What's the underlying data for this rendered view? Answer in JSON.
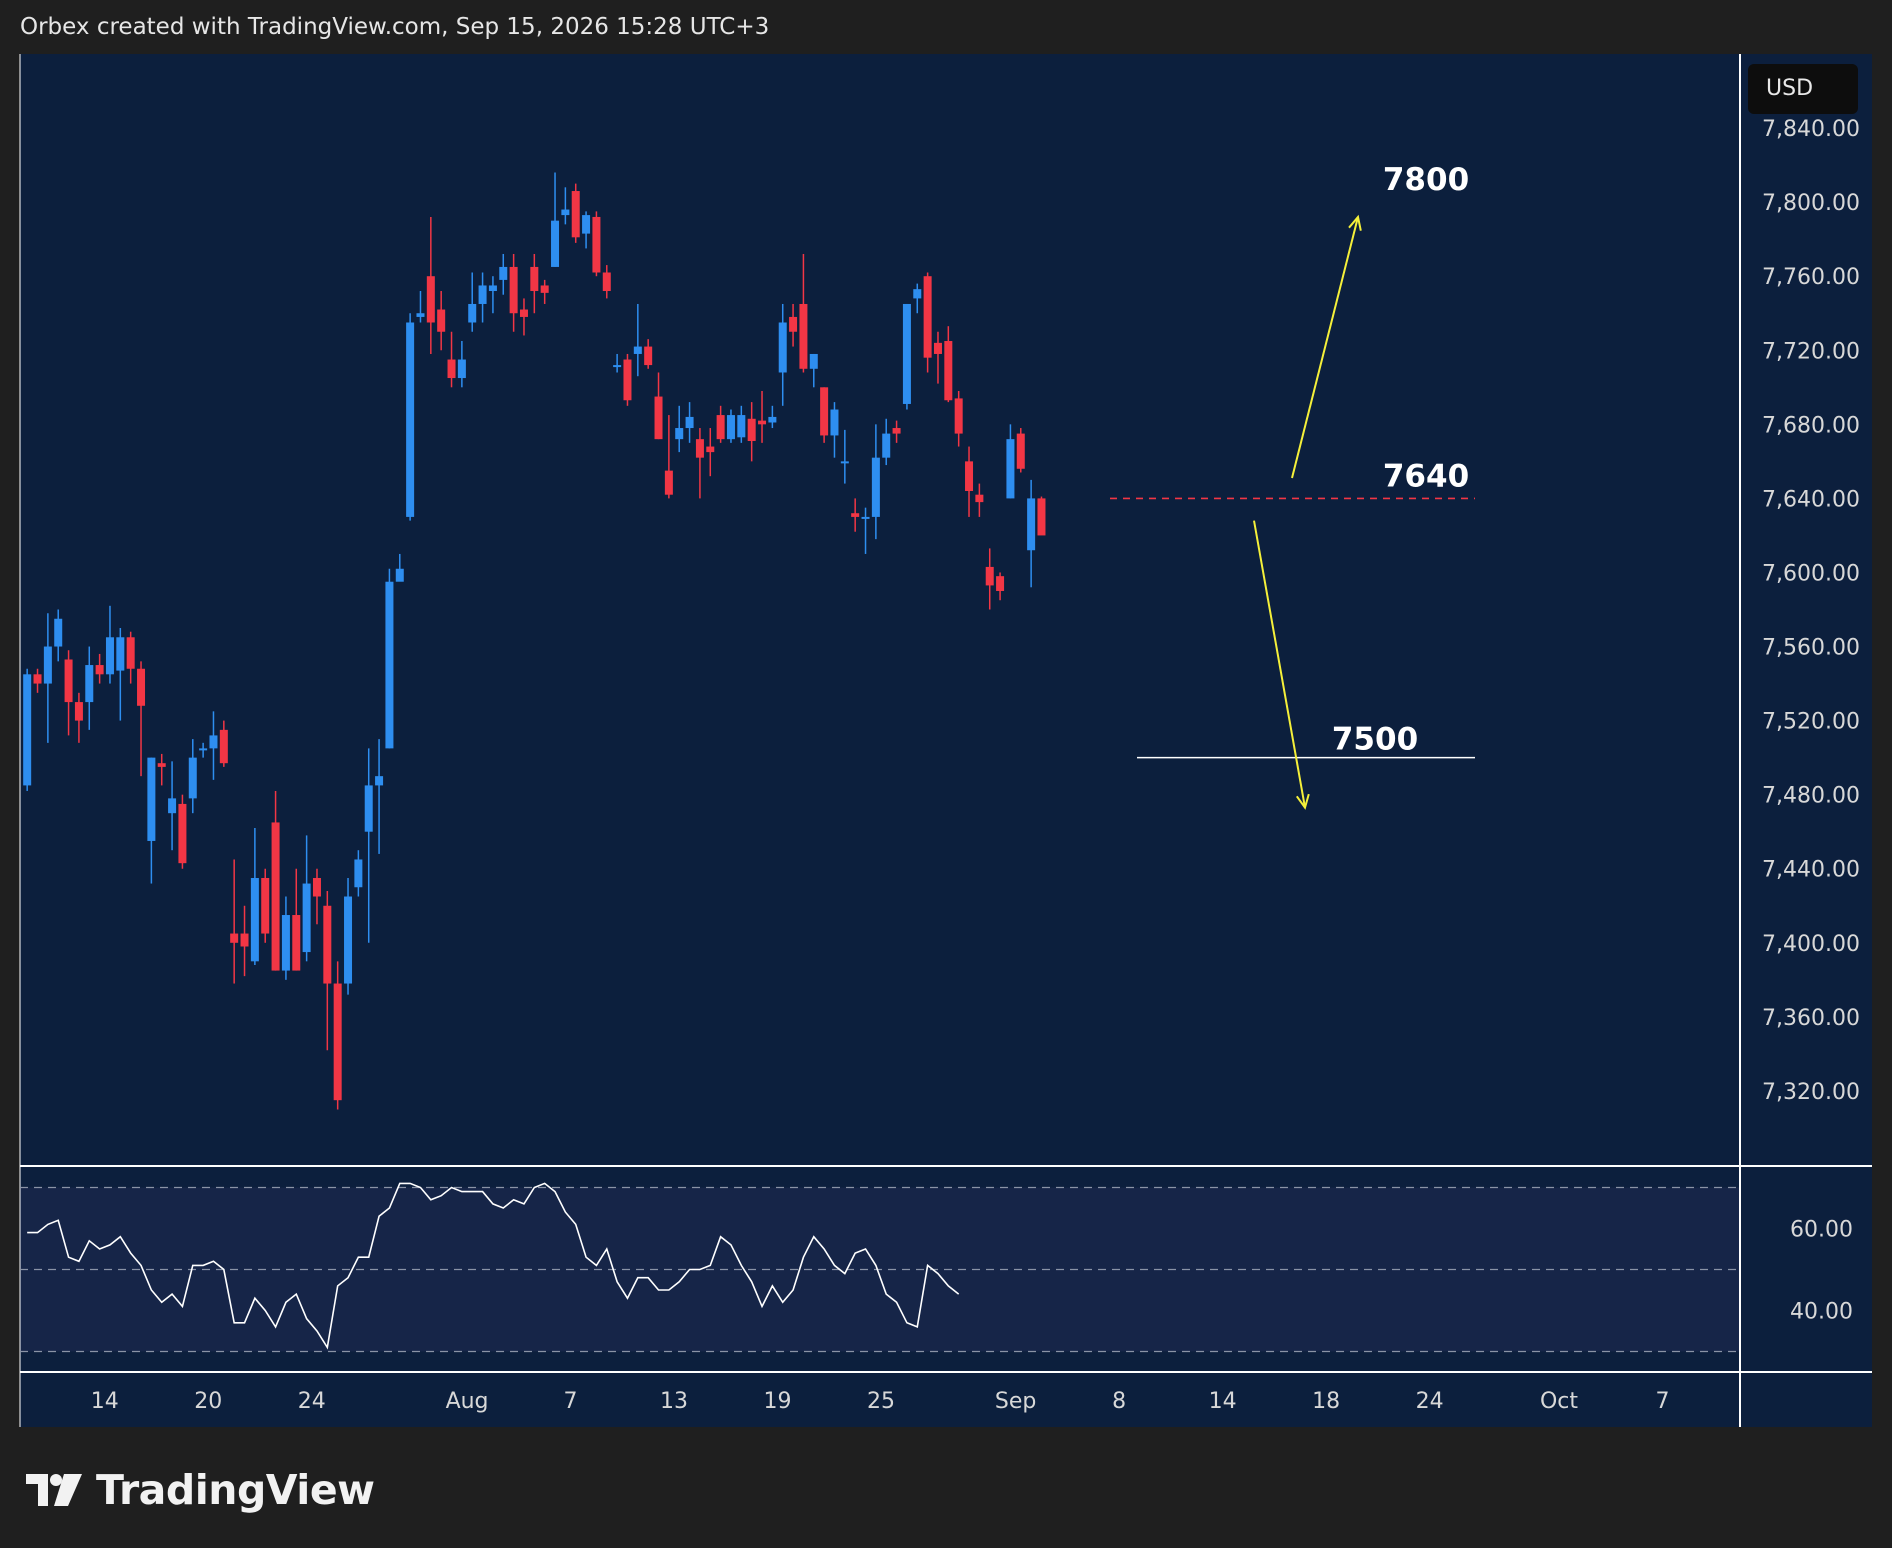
{
  "header": {
    "text": "Orbex created with TradingView.com, Sep 15, 2026 15:28 UTC+3"
  },
  "currency": "USD",
  "brand": {
    "name": "TradingView"
  },
  "colors": {
    "up": "#2e8ef0",
    "down": "#f23645",
    "background": "#0c1f3d",
    "rsi_band": "#162548",
    "arrow": "#f5f03a",
    "level_dashed": "#f23645",
    "level_solid": "#ffffff"
  },
  "chart_data": [
    {
      "type": "candlestick",
      "title": "",
      "ylim": [
        7280,
        7880
      ],
      "y_ticks": [
        "7,840.00",
        "7,800.00",
        "7,760.00",
        "7,720.00",
        "7,680.00",
        "7,640.00",
        "7,600.00",
        "7,560.00",
        "7,520.00",
        "7,480.00",
        "7,440.00",
        "7,400.00",
        "7,360.00",
        "7,320.00"
      ],
      "x_ticks": [
        {
          "label": "14",
          "bar": 7.5
        },
        {
          "label": "20",
          "bar": 17.5
        },
        {
          "label": "24",
          "bar": 27.5
        },
        {
          "label": "Aug",
          "bar": 42.5
        },
        {
          "label": "7",
          "bar": 52.5
        },
        {
          "label": "13",
          "bar": 62.5
        },
        {
          "label": "19",
          "bar": 72.5
        },
        {
          "label": "25",
          "bar": 82.5
        },
        {
          "label": "Sep",
          "bar": 95.5
        },
        {
          "label": "8",
          "bar": 105.5
        },
        {
          "label": "14",
          "bar": 115.5
        },
        {
          "label": "18",
          "bar": 125.5
        },
        {
          "label": "24",
          "bar": 135.5
        },
        {
          "label": "Oct",
          "bar": 148
        },
        {
          "label": "7",
          "bar": 158
        }
      ],
      "ohlc": [
        [
          7485,
          7548,
          7482,
          7545
        ],
        [
          7545,
          7548,
          7535,
          7540
        ],
        [
          7540,
          7578,
          7508,
          7560
        ],
        [
          7560,
          7580,
          7552,
          7575
        ],
        [
          7553,
          7558,
          7512,
          7530
        ],
        [
          7530,
          7535,
          7508,
          7520
        ],
        [
          7530,
          7560,
          7515,
          7550
        ],
        [
          7550,
          7556,
          7540,
          7545
        ],
        [
          7545,
          7582,
          7540,
          7565
        ],
        [
          7547,
          7570,
          7520,
          7565
        ],
        [
          7565,
          7568,
          7540,
          7548
        ],
        [
          7548,
          7552,
          7490,
          7528
        ],
        [
          7455,
          7500,
          7432,
          7500
        ],
        [
          7497,
          7502,
          7485,
          7495
        ],
        [
          7470,
          7498,
          7450,
          7478
        ],
        [
          7475,
          7480,
          7440,
          7443
        ],
        [
          7478,
          7510,
          7470,
          7500
        ],
        [
          7505,
          7508,
          7500,
          7505
        ],
        [
          7505,
          7525,
          7488,
          7512
        ],
        [
          7515,
          7520,
          7495,
          7497
        ],
        [
          7405,
          7445,
          7378,
          7400
        ],
        [
          7405,
          7420,
          7382,
          7398
        ],
        [
          7390,
          7462,
          7388,
          7435
        ],
        [
          7435,
          7440,
          7400,
          7405
        ],
        [
          7465,
          7482,
          7385,
          7385
        ],
        [
          7385,
          7425,
          7380,
          7415
        ],
        [
          7415,
          7440,
          7385,
          7385
        ],
        [
          7395,
          7458,
          7390,
          7432
        ],
        [
          7435,
          7440,
          7410,
          7425
        ],
        [
          7420,
          7428,
          7342,
          7378
        ],
        [
          7378,
          7390,
          7310,
          7315
        ],
        [
          7378,
          7435,
          7372,
          7425
        ],
        [
          7430,
          7450,
          7425,
          7445
        ],
        [
          7460,
          7505,
          7400,
          7485
        ],
        [
          7485,
          7510,
          7448,
          7490
        ],
        [
          7505,
          7602,
          7505,
          7595
        ],
        [
          7595,
          7610,
          7598,
          7602
        ],
        [
          7630,
          7740,
          7628,
          7735
        ],
        [
          7738,
          7752,
          7735,
          7740
        ],
        [
          7760,
          7792,
          7718,
          7735
        ],
        [
          7742,
          7752,
          7720,
          7730
        ],
        [
          7715,
          7730,
          7700,
          7705
        ],
        [
          7705,
          7725,
          7700,
          7715
        ],
        [
          7735,
          7762,
          7730,
          7745
        ],
        [
          7745,
          7762,
          7735,
          7755
        ],
        [
          7752,
          7760,
          7740,
          7755
        ],
        [
          7758,
          7772,
          7750,
          7765
        ],
        [
          7765,
          7772,
          7730,
          7740
        ],
        [
          7742,
          7748,
          7728,
          7738
        ],
        [
          7765,
          7772,
          7740,
          7752
        ],
        [
          7755,
          7758,
          7745,
          7751
        ],
        [
          7765,
          7816,
          7765,
          7790
        ],
        [
          7793,
          7808,
          7788,
          7796
        ],
        [
          7806,
          7810,
          7778,
          7781
        ],
        [
          7783,
          7795,
          7775,
          7793
        ],
        [
          7792,
          7795,
          7760,
          7762
        ],
        [
          7762,
          7766,
          7748,
          7752
        ],
        [
          7712,
          7718,
          7708,
          7712
        ],
        [
          7715,
          7718,
          7690,
          7693
        ],
        [
          7718,
          7745,
          7706,
          7722
        ],
        [
          7722,
          7726,
          7710,
          7712
        ],
        [
          7695,
          7708,
          7672,
          7672
        ],
        [
          7655,
          7685,
          7640,
          7642
        ],
        [
          7672,
          7690,
          7665,
          7678
        ],
        [
          7678,
          7692,
          7670,
          7684
        ],
        [
          7672,
          7678,
          7640,
          7662
        ],
        [
          7668,
          7678,
          7652,
          7665
        ],
        [
          7685,
          7690,
          7670,
          7672
        ],
        [
          7672,
          7688,
          7670,
          7685
        ],
        [
          7673,
          7690,
          7670,
          7685
        ],
        [
          7683,
          7692,
          7660,
          7671
        ],
        [
          7682,
          7698,
          7670,
          7680
        ],
        [
          7681,
          7690,
          7678,
          7684
        ],
        [
          7708,
          7745,
          7690,
          7735
        ],
        [
          7738,
          7745,
          7722,
          7730
        ],
        [
          7745,
          7772,
          7708,
          7710
        ],
        [
          7710,
          7718,
          7700,
          7718
        ],
        [
          7700,
          7700,
          7670,
          7674
        ],
        [
          7674,
          7692,
          7662,
          7688
        ],
        [
          7660,
          7677,
          7648,
          7660
        ],
        [
          7632,
          7640,
          7622,
          7630
        ],
        [
          7630,
          7635,
          7610,
          7630
        ],
        [
          7630,
          7680,
          7618,
          7662
        ],
        [
          7662,
          7683,
          7658,
          7675
        ],
        [
          7678,
          7682,
          7670,
          7675
        ],
        [
          7691,
          7745,
          7688,
          7745
        ],
        [
          7748,
          7756,
          7740,
          7753
        ],
        [
          7760,
          7762,
          7708,
          7716
        ],
        [
          7724,
          7730,
          7702,
          7718
        ],
        [
          7725,
          7733,
          7692,
          7693
        ],
        [
          7694,
          7698,
          7668,
          7675
        ],
        [
          7660,
          7668,
          7630,
          7644
        ],
        [
          7642,
          7648,
          7630,
          7638
        ],
        [
          7603,
          7613,
          7580,
          7593
        ],
        [
          7598,
          7600,
          7585,
          7590
        ],
        [
          7640,
          7680,
          7640,
          7672
        ],
        [
          7675,
          7678,
          7654,
          7656
        ],
        [
          7612,
          7650,
          7592,
          7640
        ],
        [
          7640,
          7641,
          7624,
          7620
        ]
      ],
      "levels": [
        {
          "label": "7800",
          "value": 7800
        },
        {
          "label": "7640",
          "value": 7640
        },
        {
          "label": "7500",
          "value": 7500
        }
      ]
    },
    {
      "type": "line",
      "title": "",
      "ylim": [
        25,
        75
      ],
      "y_ticks": [
        "60.00",
        "40.00"
      ],
      "band": [
        30,
        70
      ],
      "midline": 50,
      "series": [
        {
          "values": [
            59,
            59,
            61,
            62,
            53,
            52,
            57,
            55,
            56,
            58,
            54,
            51,
            45,
            42,
            44,
            41,
            51,
            51,
            52,
            50,
            37,
            37,
            43,
            40,
            36,
            42,
            44,
            38,
            35,
            31,
            46,
            48,
            53,
            53,
            63,
            65,
            71,
            71,
            70,
            67,
            68,
            70,
            69,
            69,
            69,
            66,
            65,
            67,
            66,
            70,
            71,
            69,
            64,
            61,
            53,
            51,
            55,
            47,
            43,
            48,
            48,
            45,
            45,
            47,
            50,
            50,
            51,
            58,
            56,
            51,
            47,
            41,
            46,
            42,
            45,
            53,
            58,
            55,
            51,
            49,
            54,
            55,
            51,
            44,
            42,
            37,
            36,
            51,
            49,
            46,
            44
          ]
        }
      ]
    }
  ]
}
